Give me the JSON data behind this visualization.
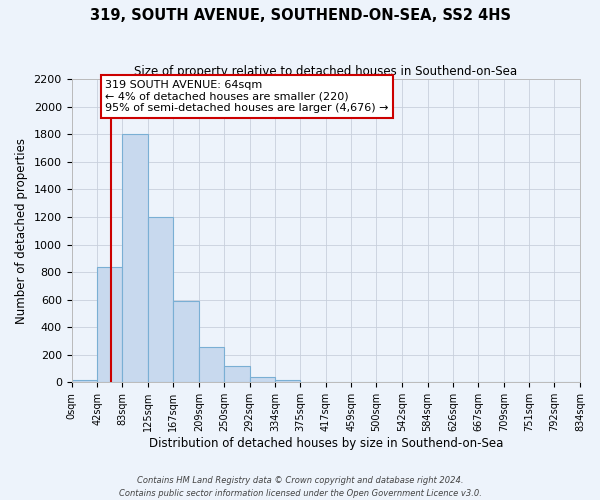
{
  "title": "319, SOUTH AVENUE, SOUTHEND-ON-SEA, SS2 4HS",
  "subtitle": "Size of property relative to detached houses in Southend-on-Sea",
  "xlabel": "Distribution of detached houses by size in Southend-on-Sea",
  "ylabel": "Number of detached properties",
  "bin_edges": [
    0,
    42,
    83,
    125,
    167,
    209,
    250,
    292,
    334,
    375,
    417,
    459,
    500,
    542,
    584,
    626,
    667,
    709,
    751,
    792,
    834
  ],
  "bin_heights": [
    20,
    840,
    1800,
    1200,
    590,
    255,
    120,
    40,
    20,
    0,
    0,
    0,
    0,
    0,
    0,
    0,
    0,
    0,
    0,
    0
  ],
  "bar_color": "#c8d9ee",
  "bar_edge_color": "#7aafd4",
  "grid_color": "#c8d0dc",
  "bg_color": "#edf3fb",
  "vline_x": 64,
  "vline_color": "#cc0000",
  "annotation_title": "319 SOUTH AVENUE: 64sqm",
  "annotation_line1": "← 4% of detached houses are smaller (220)",
  "annotation_line2": "95% of semi-detached houses are larger (4,676) →",
  "annotation_box_color": "#ffffff",
  "annotation_box_edge": "#cc0000",
  "ylim": [
    0,
    2200
  ],
  "yticks": [
    0,
    200,
    400,
    600,
    800,
    1000,
    1200,
    1400,
    1600,
    1800,
    2000,
    2200
  ],
  "xtick_labels": [
    "0sqm",
    "42sqm",
    "83sqm",
    "125sqm",
    "167sqm",
    "209sqm",
    "250sqm",
    "292sqm",
    "334sqm",
    "375sqm",
    "417sqm",
    "459sqm",
    "500sqm",
    "542sqm",
    "584sqm",
    "626sqm",
    "667sqm",
    "709sqm",
    "751sqm",
    "792sqm",
    "834sqm"
  ],
  "footer1": "Contains HM Land Registry data © Crown copyright and database right 2024.",
  "footer2": "Contains public sector information licensed under the Open Government Licence v3.0."
}
